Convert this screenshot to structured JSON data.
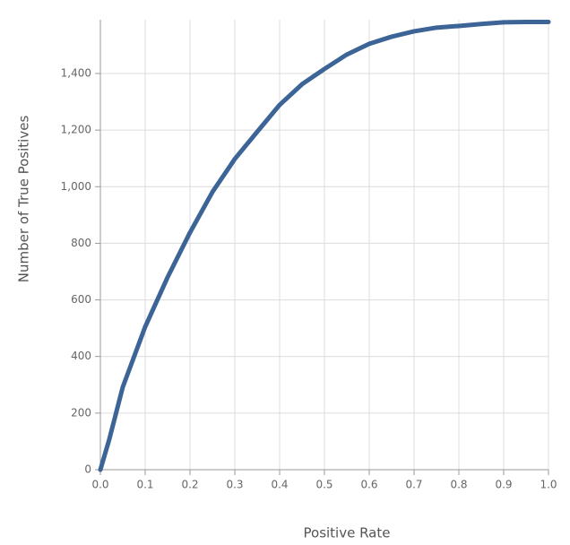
{
  "chart_data": {
    "type": "line",
    "x_label": "Positive Rate",
    "y_label": "Number of True Positives",
    "x": [
      0,
      0.02,
      0.05,
      0.1,
      0.15,
      0.2,
      0.25,
      0.3,
      0.35,
      0.4,
      0.45,
      0.5,
      0.55,
      0.6,
      0.65,
      0.7,
      0.75,
      0.8,
      0.85,
      0.9,
      0.95,
      1.0
    ],
    "series": [
      {
        "name": "True Positives",
        "color": "#3c6496",
        "values": [
          0,
          108,
          292,
          505,
          680,
          838,
          981,
          1098,
          1194,
          1289,
          1362,
          1416,
          1467,
          1505,
          1530,
          1549,
          1562,
          1568,
          1575,
          1581,
          1582,
          1582
        ]
      }
    ],
    "xlim": [
      0,
      1
    ],
    "ylim": [
      0,
      1590
    ],
    "xticks": [
      {
        "value": 0,
        "label": "0.0"
      },
      0.1,
      0.2,
      0.3,
      0.4,
      0.5,
      0.6,
      0.7,
      0.8,
      0.9,
      {
        "value": 1,
        "label": "1.0"
      }
    ],
    "yticks": [
      0,
      200,
      400,
      600,
      800,
      {
        "value": 1000,
        "label": "1,000"
      },
      {
        "value": 1200,
        "label": "1,200"
      },
      {
        "value": 1400,
        "label": "1,400"
      }
    ],
    "grid": true
  }
}
